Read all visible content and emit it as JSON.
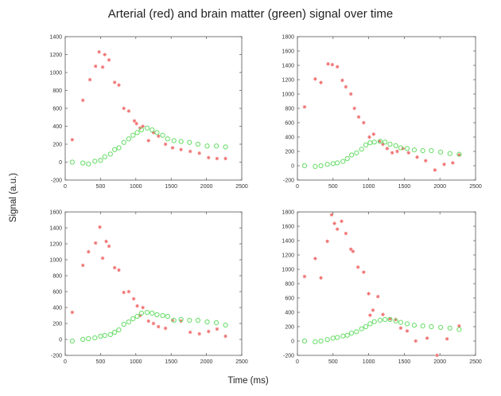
{
  "title": "Arterial (red) and brain matter (green) signal over time",
  "ylabel": "Signal (a.u.)",
  "xlabel": "Time (ms)",
  "colors": {
    "arterial": "#f07070",
    "brain": "#66dd66"
  },
  "chart_data": [
    {
      "type": "scatter",
      "xlim": [
        0,
        2500
      ],
      "ylim": [
        -200,
        1400
      ],
      "xticks": [
        0,
        500,
        1000,
        1500,
        2000,
        2500
      ],
      "yticks": [
        -200,
        0,
        200,
        400,
        600,
        800,
        1000,
        1200,
        1400
      ],
      "series": [
        {
          "color": "red",
          "marker": "asterisk",
          "x": [
            100,
            250,
            350,
            430,
            480,
            530,
            560,
            620,
            700,
            760,
            830,
            900,
            980,
            1010,
            1060,
            1100,
            1180,
            1250,
            1320,
            1420,
            1520,
            1640,
            1770,
            1900,
            2030,
            2150,
            2270
          ],
          "y": [
            250,
            690,
            920,
            1070,
            1230,
            1060,
            1200,
            1140,
            890,
            860,
            600,
            570,
            460,
            430,
            380,
            400,
            240,
            330,
            290,
            200,
            160,
            140,
            120,
            100,
            50,
            40,
            40
          ]
        },
        {
          "color": "green",
          "marker": "circle",
          "x": [
            100,
            250,
            330,
            420,
            500,
            560,
            640,
            700,
            760,
            830,
            900,
            960,
            1020,
            1080,
            1160,
            1230,
            1300,
            1380,
            1450,
            1540,
            1640,
            1760,
            1880,
            2010,
            2140,
            2270
          ],
          "y": [
            0,
            -10,
            -20,
            10,
            20,
            60,
            90,
            140,
            160,
            220,
            260,
            300,
            330,
            360,
            380,
            360,
            330,
            300,
            260,
            240,
            230,
            220,
            200,
            180,
            180,
            170
          ]
        }
      ]
    },
    {
      "type": "scatter",
      "xlim": [
        0,
        2500
      ],
      "ylim": [
        -200,
        1800
      ],
      "xticks": [
        0,
        500,
        1000,
        1500,
        2000,
        2500
      ],
      "yticks": [
        -200,
        0,
        200,
        400,
        600,
        800,
        1000,
        1200,
        1400,
        1600,
        1800
      ],
      "series": [
        {
          "color": "red",
          "marker": "asterisk",
          "x": [
            100,
            250,
            330,
            430,
            490,
            560,
            630,
            680,
            750,
            800,
            860,
            930,
            1010,
            1070,
            1150,
            1200,
            1260,
            1330,
            1400,
            1480,
            1560,
            1680,
            1800,
            1930,
            2060,
            2180,
            2270
          ],
          "y": [
            820,
            1210,
            1160,
            1420,
            1410,
            1380,
            1190,
            1100,
            1000,
            800,
            680,
            600,
            400,
            440,
            340,
            300,
            240,
            180,
            200,
            240,
            180,
            120,
            70,
            -60,
            20,
            40,
            150
          ]
        },
        {
          "color": "green",
          "marker": "circle",
          "x": [
            100,
            250,
            330,
            420,
            500,
            560,
            640,
            700,
            760,
            830,
            900,
            960,
            1020,
            1080,
            1160,
            1230,
            1300,
            1380,
            1450,
            1540,
            1640,
            1760,
            1880,
            2010,
            2140,
            2270
          ],
          "y": [
            0,
            -10,
            0,
            20,
            30,
            40,
            60,
            100,
            150,
            180,
            230,
            290,
            320,
            330,
            340,
            330,
            300,
            280,
            250,
            240,
            220,
            210,
            210,
            190,
            170,
            160
          ]
        }
      ]
    },
    {
      "type": "scatter",
      "xlim": [
        0,
        2500
      ],
      "ylim": [
        -200,
        1600
      ],
      "xticks": [
        0,
        500,
        1000,
        1500,
        2000,
        2500
      ],
      "yticks": [
        -200,
        0,
        200,
        400,
        600,
        800,
        1000,
        1200,
        1400,
        1600
      ],
      "series": [
        {
          "color": "red",
          "marker": "asterisk",
          "x": [
            100,
            250,
            330,
            430,
            490,
            530,
            580,
            620,
            700,
            760,
            830,
            900,
            970,
            1020,
            1060,
            1100,
            1180,
            1250,
            1320,
            1420,
            1520,
            1640,
            1770,
            1900,
            2030,
            2150,
            2270
          ],
          "y": [
            340,
            930,
            1100,
            1210,
            1410,
            1020,
            1230,
            1170,
            900,
            870,
            590,
            600,
            510,
            420,
            300,
            400,
            230,
            200,
            160,
            140,
            240,
            230,
            90,
            70,
            100,
            130,
            40
          ]
        },
        {
          "color": "green",
          "marker": "circle",
          "x": [
            100,
            250,
            330,
            420,
            500,
            560,
            640,
            700,
            760,
            830,
            900,
            960,
            1020,
            1080,
            1160,
            1230,
            1300,
            1380,
            1450,
            1540,
            1640,
            1760,
            1880,
            2010,
            2140,
            2270
          ],
          "y": [
            -20,
            0,
            10,
            20,
            40,
            50,
            60,
            90,
            120,
            190,
            220,
            260,
            290,
            330,
            340,
            330,
            310,
            300,
            290,
            240,
            250,
            240,
            240,
            220,
            210,
            180
          ]
        }
      ]
    },
    {
      "type": "scatter",
      "xlim": [
        0,
        2500
      ],
      "ylim": [
        -200,
        1800
      ],
      "xticks": [
        0,
        500,
        1000,
        1500,
        2000,
        2500
      ],
      "yticks": [
        -200,
        0,
        200,
        400,
        600,
        800,
        1000,
        1200,
        1400,
        1600,
        1800
      ],
      "series": [
        {
          "color": "red",
          "marker": "asterisk",
          "x": [
            100,
            250,
            330,
            420,
            480,
            520,
            560,
            620,
            680,
            750,
            780,
            850,
            930,
            1000,
            1020,
            1060,
            1130,
            1200,
            1300,
            1380,
            1450,
            1540,
            1660,
            1820,
            1960,
            2100,
            2270
          ],
          "y": [
            900,
            1150,
            880,
            1390,
            1760,
            1640,
            1560,
            1670,
            1500,
            1280,
            1250,
            1030,
            960,
            660,
            360,
            430,
            620,
            370,
            310,
            300,
            180,
            140,
            0,
            40,
            -200,
            30,
            210
          ]
        },
        {
          "color": "green",
          "marker": "circle",
          "x": [
            100,
            250,
            330,
            420,
            500,
            560,
            640,
            700,
            760,
            830,
            900,
            960,
            1020,
            1080,
            1160,
            1230,
            1300,
            1380,
            1450,
            1540,
            1640,
            1760,
            1880,
            2010,
            2140,
            2270
          ],
          "y": [
            0,
            -10,
            0,
            20,
            40,
            50,
            70,
            80,
            110,
            130,
            170,
            200,
            240,
            270,
            290,
            300,
            300,
            280,
            260,
            240,
            220,
            210,
            200,
            190,
            180,
            160
          ]
        }
      ]
    }
  ]
}
